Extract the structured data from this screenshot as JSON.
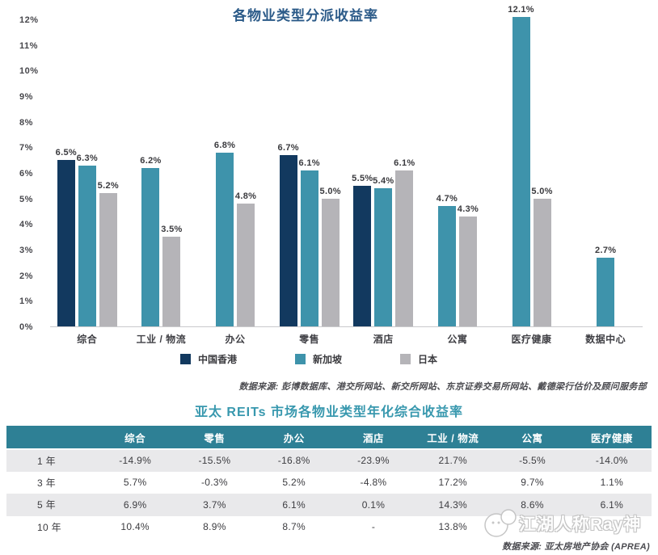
{
  "chart_data": [
    {
      "type": "bar",
      "title": "各物业类型分派收益率",
      "categories": [
        "综合",
        "工业 / 物流",
        "办公",
        "零售",
        "酒店",
        "公寓",
        "医疗健康",
        "数据中心"
      ],
      "series": [
        {
          "name": "中国香港",
          "color": "#12395f",
          "values": [
            6.5,
            null,
            null,
            6.7,
            5.5,
            null,
            null,
            null
          ]
        },
        {
          "name": "新加坡",
          "color": "#3e93ab",
          "values": [
            6.3,
            6.2,
            6.8,
            6.1,
            5.4,
            4.7,
            12.1,
            2.7
          ]
        },
        {
          "name": "日本",
          "color": "#b5b4b8",
          "values": [
            5.2,
            3.5,
            4.8,
            5.0,
            6.1,
            4.3,
            5.0,
            null
          ]
        }
      ],
      "y_ticks": [
        "0%",
        "1%",
        "2%",
        "3%",
        "4%",
        "5%",
        "6%",
        "7%",
        "8%",
        "9%",
        "10%",
        "11%",
        "12%"
      ],
      "ylim": [
        0,
        12
      ],
      "grid": false,
      "legend_position": "bottom",
      "data_label_format": "one-decimal-percent",
      "source": "数据来源: 彭博数据库、港交所网站、新交所网站、东京证券交易所网站、戴德梁行估价及顾问服务部"
    },
    {
      "type": "table",
      "title": "亚太 REITs 市场各物业类型年化综合收益率",
      "headers": [
        "",
        "综合",
        "零售",
        "办公",
        "酒店",
        "工业 / 物流",
        "公寓",
        "医疗健康"
      ],
      "rows": [
        {
          "label": "1 年",
          "values": [
            "-14.9%",
            "-15.5%",
            "-16.8%",
            "-23.9%",
            "21.7%",
            "-5.5%",
            "-14.0%"
          ]
        },
        {
          "label": "3 年",
          "values": [
            "5.7%",
            "-0.3%",
            "5.2%",
            "-4.8%",
            "17.2%",
            "9.7%",
            "1.1%"
          ]
        },
        {
          "label": "5 年",
          "values": [
            "6.9%",
            "3.7%",
            "6.1%",
            "0.1%",
            "14.3%",
            "8.6%",
            "6.1%"
          ]
        },
        {
          "label": "10 年",
          "values": [
            "10.4%",
            "8.9%",
            "8.7%",
            "-",
            "13.8%",
            "",
            ""
          ]
        }
      ],
      "source": "数据来源: 亚太房地产协会 (APREA)"
    }
  ],
  "watermark": {
    "text": "江湖人称Ray神"
  },
  "colors": {
    "chart_title": "#2b5a88",
    "table_title": "#3898ae",
    "table_header_bg": "#2e8095",
    "table_row_alt_bg": "#e9e9eb",
    "hk_bar": "#12395f",
    "sg_bar": "#3e93ab",
    "jp_bar": "#b5b4b8"
  }
}
